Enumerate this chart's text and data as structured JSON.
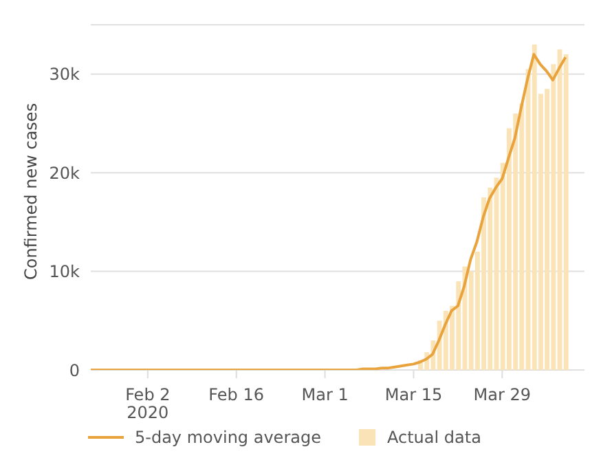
{
  "chart_data": {
    "type": "line",
    "ylabel": "Confirmed new cases",
    "x": [
      "2020-01-24",
      "2020-01-25",
      "2020-01-26",
      "2020-01-27",
      "2020-01-28",
      "2020-01-29",
      "2020-01-30",
      "2020-01-31",
      "2020-02-01",
      "2020-02-02",
      "2020-02-03",
      "2020-02-04",
      "2020-02-05",
      "2020-02-06",
      "2020-02-07",
      "2020-02-08",
      "2020-02-09",
      "2020-02-10",
      "2020-02-11",
      "2020-02-12",
      "2020-02-13",
      "2020-02-14",
      "2020-02-15",
      "2020-02-16",
      "2020-02-17",
      "2020-02-18",
      "2020-02-19",
      "2020-02-20",
      "2020-02-21",
      "2020-02-22",
      "2020-02-23",
      "2020-02-24",
      "2020-02-25",
      "2020-02-26",
      "2020-02-27",
      "2020-02-28",
      "2020-02-29",
      "2020-03-01",
      "2020-03-02",
      "2020-03-03",
      "2020-03-04",
      "2020-03-05",
      "2020-03-06",
      "2020-03-07",
      "2020-03-08",
      "2020-03-09",
      "2020-03-10",
      "2020-03-11",
      "2020-03-12",
      "2020-03-13",
      "2020-03-14",
      "2020-03-15",
      "2020-03-16",
      "2020-03-17",
      "2020-03-18",
      "2020-03-19",
      "2020-03-20",
      "2020-03-21",
      "2020-03-22",
      "2020-03-23",
      "2020-03-24",
      "2020-03-25",
      "2020-03-26",
      "2020-03-27",
      "2020-03-28",
      "2020-03-29",
      "2020-03-30",
      "2020-03-31",
      "2020-04-01",
      "2020-04-02",
      "2020-04-03",
      "2020-04-04",
      "2020-04-05",
      "2020-04-06",
      "2020-04-07",
      "2020-04-08"
    ],
    "series": [
      {
        "name": "5-day moving average",
        "color": "#e8a33d",
        "values": [
          0,
          0,
          0,
          0,
          0,
          0,
          0,
          0,
          0,
          0,
          0,
          0,
          0,
          0,
          0,
          0,
          0,
          0,
          0,
          0,
          0,
          0,
          0,
          0,
          0,
          0,
          0,
          0,
          0,
          0,
          0,
          0,
          0,
          0,
          0,
          0,
          0,
          0,
          0,
          0,
          0,
          0,
          0,
          100,
          100,
          100,
          200,
          200,
          300,
          400,
          500,
          600,
          800,
          1100,
          1600,
          3000,
          4600,
          6000,
          6500,
          8500,
          11200,
          13000,
          15500,
          17400,
          18500,
          19400,
          21500,
          23500,
          26600,
          29500,
          32000,
          31000,
          30300,
          29400,
          30600,
          31700
        ]
      },
      {
        "name": "Actual data",
        "type": "bar",
        "color": "#fbe3b8",
        "values": [
          null,
          null,
          null,
          null,
          null,
          null,
          null,
          null,
          null,
          null,
          null,
          null,
          null,
          null,
          null,
          null,
          null,
          null,
          null,
          null,
          null,
          null,
          null,
          null,
          null,
          null,
          null,
          null,
          null,
          null,
          null,
          null,
          null,
          null,
          null,
          null,
          null,
          null,
          null,
          null,
          null,
          null,
          null,
          null,
          null,
          null,
          null,
          null,
          null,
          null,
          null,
          null,
          1000,
          1800,
          3000,
          5000,
          6000,
          6500,
          9000,
          10500,
          10000,
          12000,
          17500,
          18500,
          19500,
          21000,
          24500,
          26000,
          27000,
          30500,
          33000,
          28000,
          28500,
          31000,
          32500,
          32000
        ]
      }
    ],
    "xlim": [
      "2020-01-24",
      "2020-04-11"
    ],
    "xticks": [
      {
        "value": "2020-02-02",
        "label": "Feb 2\n2020"
      },
      {
        "value": "2020-02-16",
        "label": "Feb 16"
      },
      {
        "value": "2020-03-01",
        "label": "Mar 1"
      },
      {
        "value": "2020-03-15",
        "label": "Mar 15"
      },
      {
        "value": "2020-03-29",
        "label": "Mar 29"
      }
    ],
    "ylim": [
      0,
      35000
    ],
    "yticks": [
      0,
      {
        "value": 10000,
        "label": "10k"
      },
      {
        "value": 20000,
        "label": "20k"
      },
      {
        "value": 30000,
        "label": "30k"
      }
    ],
    "grid": "y",
    "legend": "bottom"
  }
}
